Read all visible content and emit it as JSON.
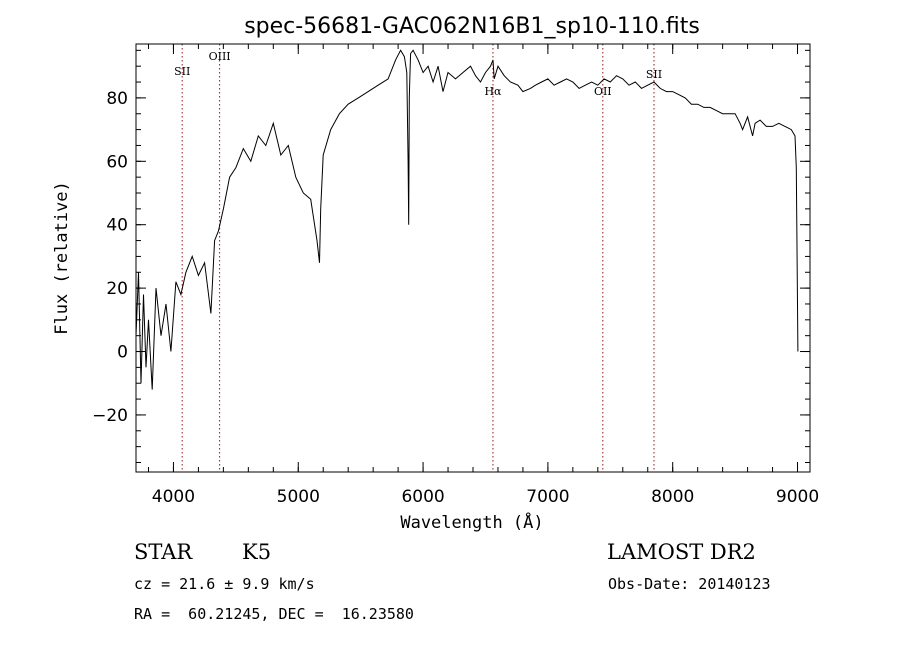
{
  "chart_data": {
    "type": "line",
    "title": "spec-56681-GAC062N16B1_sp10-110.fits",
    "xlabel": "Wavelength (Å)",
    "ylabel": "Flux (relative)",
    "xlim": [
      3700,
      9100
    ],
    "ylim": [
      -38,
      97
    ],
    "xticks": [
      {
        "value": 4000,
        "label": "4000"
      },
      {
        "value": 5000,
        "label": "5000"
      },
      {
        "value": 6000,
        "label": "6000"
      },
      {
        "value": 7000,
        "label": "7000"
      },
      {
        "value": 8000,
        "label": "8000"
      },
      {
        "value": 9000,
        "label": "9000"
      }
    ],
    "yticks": [
      {
        "value": -20,
        "label": "−20"
      },
      {
        "value": 0,
        "label": "0"
      },
      {
        "value": 20,
        "label": "20"
      },
      {
        "value": 40,
        "label": "40"
      },
      {
        "value": 60,
        "label": "60"
      },
      {
        "value": 80,
        "label": "80"
      }
    ],
    "line_color": "#000000",
    "line_marker_color": "#8b1a1a",
    "series": [
      {
        "x": [
          3700,
          3720,
          3740,
          3760,
          3780,
          3800,
          3830,
          3860,
          3900,
          3940,
          3980,
          4020,
          4060,
          4100,
          4150,
          4200,
          4250,
          4300,
          4330,
          4360,
          4400,
          4450,
          4500,
          4560,
          4620,
          4680,
          4740,
          4800,
          4860,
          4920,
          4980,
          5040,
          5100,
          5150,
          5170,
          5180,
          5200,
          5260,
          5330,
          5400,
          5480,
          5560,
          5640,
          5720,
          5780,
          5820,
          5850,
          5870,
          5880,
          5885,
          5890,
          5895,
          5900,
          5920,
          5960,
          6000,
          6040,
          6080,
          6120,
          6160,
          6200,
          6260,
          6320,
          6380,
          6420,
          6460,
          6500,
          6540,
          6560,
          6570,
          6600,
          6650,
          6700,
          6760,
          6800,
          6860,
          6900,
          6950,
          7000,
          7050,
          7100,
          7150,
          7200,
          7250,
          7300,
          7350,
          7400,
          7450,
          7500,
          7550,
          7600,
          7650,
          7700,
          7750,
          7800,
          7850,
          7900,
          7950,
          8000,
          8050,
          8100,
          8150,
          8200,
          8250,
          8300,
          8350,
          8400,
          8450,
          8500,
          8540,
          8560,
          8600,
          8640,
          8660,
          8700,
          8750,
          8800,
          8850,
          8900,
          8950,
          8980,
          8990,
          9000,
          9003
        ],
        "y": [
          5,
          25,
          -10,
          18,
          -5,
          10,
          -12,
          20,
          5,
          15,
          0,
          22,
          18,
          25,
          30,
          24,
          28,
          12,
          35,
          38,
          45,
          55,
          58,
          64,
          60,
          68,
          65,
          72,
          62,
          65,
          55,
          50,
          48,
          35,
          28,
          45,
          62,
          70,
          75,
          78,
          80,
          82,
          84,
          86,
          92,
          95,
          93,
          88,
          60,
          40,
          80,
          88,
          94,
          95,
          92,
          88,
          90,
          85,
          90,
          82,
          88,
          86,
          88,
          90,
          87,
          85,
          88,
          90,
          92,
          86,
          90,
          87,
          85,
          84,
          82,
          83,
          84,
          85,
          86,
          84,
          85,
          86,
          85,
          83,
          84,
          85,
          84,
          86,
          85,
          87,
          86,
          84,
          85,
          83,
          84,
          85,
          83,
          82,
          82,
          81,
          80,
          78,
          78,
          77,
          77,
          76,
          75,
          75,
          75,
          72,
          70,
          74,
          68,
          72,
          73,
          71,
          71,
          72,
          71,
          70,
          68,
          58,
          15,
          0
        ]
      }
    ],
    "line_labels": [
      {
        "label": "SII",
        "x": 4070
      },
      {
        "label": "OIII",
        "x": 4370
      },
      {
        "label": "Hα",
        "x": 6560
      },
      {
        "label": "OII",
        "x": 7440
      },
      {
        "label": "SII",
        "x": 7850
      }
    ],
    "info": {
      "object_class": "STAR",
      "subclass": "K5",
      "survey": "LAMOST DR2",
      "velocity": "cz = 21.6 ± 9.9 km/s",
      "obs_date": "Obs-Date: 20140123",
      "coords": "RA =  60.21245, DEC =  16.23580"
    }
  }
}
